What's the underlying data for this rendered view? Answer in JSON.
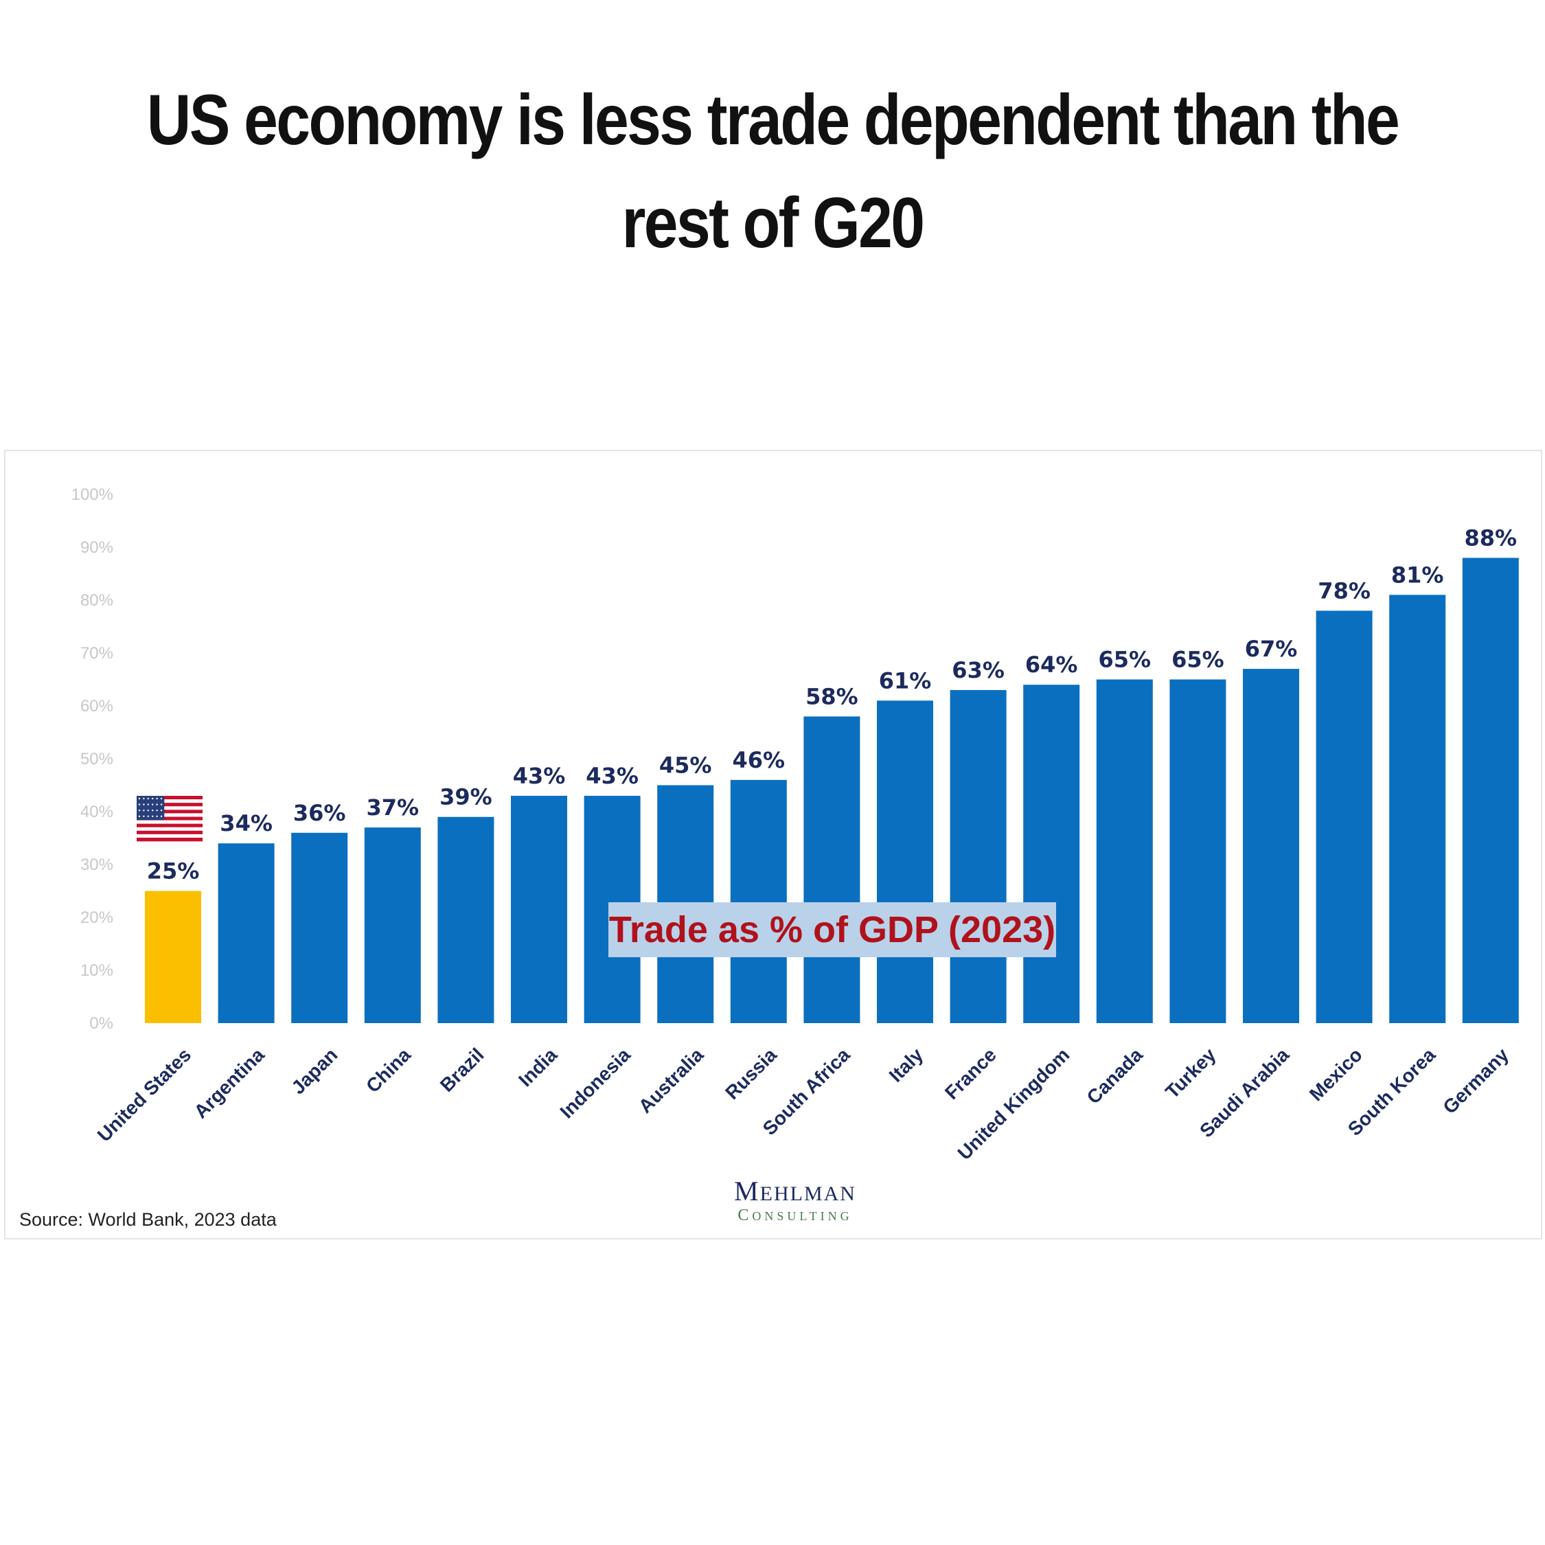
{
  "headline": "US economy is less trade dependent than the rest of G20",
  "chart_data": {
    "type": "bar",
    "categories": [
      "United States",
      "Argentina",
      "Japan",
      "China",
      "Brazil",
      "India",
      "Indonesia",
      "Australia",
      "Russia",
      "South Africa",
      "Italy",
      "France",
      "United Kingdom",
      "Canada",
      "Turkey",
      "Saudi Arabia",
      "Mexico",
      "South Korea",
      "Germany"
    ],
    "values": [
      25,
      34,
      36,
      37,
      39,
      43,
      43,
      45,
      46,
      58,
      61,
      63,
      64,
      65,
      65,
      67,
      78,
      81,
      88
    ],
    "value_labels": [
      "25%",
      "34%",
      "36%",
      "37%",
      "39%",
      "43%",
      "43%",
      "45%",
      "46%",
      "58%",
      "61%",
      "63%",
      "64%",
      "65%",
      "65%",
      "67%",
      "78%",
      "81%",
      "88%"
    ],
    "ylim": [
      0,
      100
    ],
    "yticks": [
      "0%",
      "10%",
      "20%",
      "30%",
      "40%",
      "50%",
      "60%",
      "70%",
      "80%",
      "90%",
      "100%"
    ],
    "annotation": "Trade as % of GDP (2023)",
    "highlight": {
      "category": "United States",
      "color": "#fbbf00",
      "icon": "us-flag-icon"
    },
    "bar_color": "#0b6fc0",
    "grid": false,
    "legend": "none"
  },
  "source_note": "Source: World Bank, 2023 data",
  "logo": {
    "line1": "Mehlman",
    "line2": "Consulting"
  }
}
